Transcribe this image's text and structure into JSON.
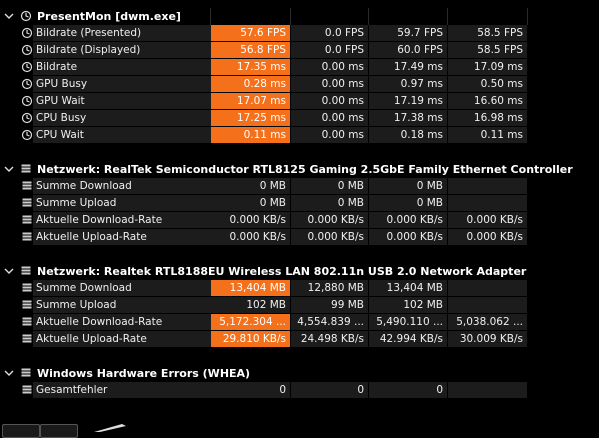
{
  "sections": [
    {
      "title": "PresentMon [dwm.exe]",
      "icon": "clock-icon",
      "rows": [
        {
          "label": "Bildrate (Presented)",
          "values": [
            "57.6 FPS",
            "0.0 FPS",
            "59.7 FPS",
            "58.5 FPS"
          ],
          "highlight": true
        },
        {
          "label": "Bildrate (Displayed)",
          "values": [
            "56.8 FPS",
            "0.0 FPS",
            "60.0 FPS",
            "58.5 FPS"
          ],
          "highlight": true
        },
        {
          "label": "Bildrate",
          "values": [
            "17.35 ms",
            "0.00 ms",
            "17.49 ms",
            "17.09 ms"
          ],
          "highlight": true
        },
        {
          "label": "GPU Busy",
          "values": [
            "0.28 ms",
            "0.00 ms",
            "0.97 ms",
            "0.50 ms"
          ],
          "highlight": true
        },
        {
          "label": "GPU Wait",
          "values": [
            "17.07 ms",
            "0.00 ms",
            "17.19 ms",
            "16.60 ms"
          ],
          "highlight": true
        },
        {
          "label": "CPU Busy",
          "values": [
            "17.25 ms",
            "0.00 ms",
            "17.38 ms",
            "16.98 ms"
          ],
          "highlight": true
        },
        {
          "label": "CPU Wait",
          "values": [
            "0.11 ms",
            "0.00 ms",
            "0.18 ms",
            "0.11 ms"
          ],
          "highlight": true
        }
      ]
    },
    {
      "title": "Netzwerk: RealTek Semiconductor RTL8125 Gaming 2.5GbE Family Ethernet Controller",
      "icon": "stack-icon",
      "rows": [
        {
          "label": "Summe Download",
          "values": [
            "0 MB",
            "0 MB",
            "0 MB",
            ""
          ],
          "highlight": false
        },
        {
          "label": "Summe Upload",
          "values": [
            "0 MB",
            "0 MB",
            "0 MB",
            ""
          ],
          "highlight": false
        },
        {
          "label": "Aktuelle Download-Rate",
          "values": [
            "0.000 KB/s",
            "0.000 KB/s",
            "0.000 KB/s",
            "0.000 KB/s"
          ],
          "highlight": false
        },
        {
          "label": "Aktuelle Upload-Rate",
          "values": [
            "0.000 KB/s",
            "0.000 KB/s",
            "0.000 KB/s",
            "0.000 KB/s"
          ],
          "highlight": false
        }
      ]
    },
    {
      "title": "Netzwerk: Realtek RTL8188EU Wireless LAN 802.11n USB 2.0 Network Adapter",
      "icon": "stack-icon",
      "rows": [
        {
          "label": "Summe Download",
          "values": [
            "13,404 MB",
            "12,880 MB",
            "13,404 MB",
            ""
          ],
          "highlight": true
        },
        {
          "label": "Summe Upload",
          "values": [
            "102 MB",
            "99 MB",
            "102 MB",
            ""
          ],
          "highlight": false
        },
        {
          "label": "Aktuelle Download-Rate",
          "values": [
            "5,172.304 ...",
            "4,554.839 ...",
            "5,490.110 ...",
            "5,038.062 ..."
          ],
          "highlight": true
        },
        {
          "label": "Aktuelle Upload-Rate",
          "values": [
            "29.810 KB/s",
            "24.498 KB/s",
            "42.994 KB/s",
            "30.009 KB/s"
          ],
          "highlight": true
        }
      ]
    },
    {
      "title": "Windows Hardware Errors (WHEA)",
      "icon": "stack-icon",
      "rows": [
        {
          "label": "Gesamtfehler",
          "values": [
            "0",
            "0",
            "0",
            ""
          ],
          "highlight": false
        }
      ]
    }
  ],
  "colors": {
    "highlight": "#f5701b",
    "row_bg": "#1c1c1c",
    "background": "#000000"
  }
}
